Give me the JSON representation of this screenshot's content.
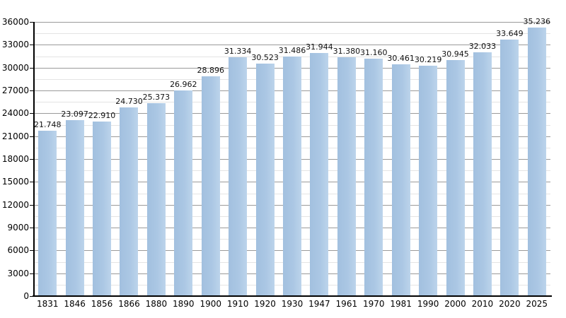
{
  "chart_data": {
    "type": "bar",
    "title": "",
    "xlabel": "",
    "ylabel": "",
    "categories": [
      "1831",
      "1846",
      "1856",
      "1866",
      "1880",
      "1890",
      "1900",
      "1910",
      "1920",
      "1930",
      "1947",
      "1961",
      "1970",
      "1981",
      "1990",
      "2000",
      "2010",
      "2020",
      "2025"
    ],
    "values": [
      21748,
      23097,
      22910,
      24730,
      25373,
      26962,
      28896,
      31334,
      30523,
      31486,
      31944,
      31380,
      31160,
      30461,
      30219,
      30945,
      32033,
      33649,
      35236
    ],
    "value_labels": [
      "21.748",
      "23.097",
      "22.910",
      "24.730",
      "25.373",
      "26.962",
      "28.896",
      "31.334",
      "30.523",
      "31.486",
      "31.944",
      "31.380",
      "31.160",
      "30.461",
      "30.219",
      "30.945",
      "32.033",
      "33.649",
      "35.236"
    ],
    "ylim": [
      0,
      36000
    ],
    "y_major_step": 3000,
    "y_minor_step": 1500,
    "y_tick_labels": [
      "0",
      "3000",
      "6000",
      "9000",
      "12000",
      "15000",
      "18000",
      "21000",
      "24000",
      "27000",
      "30000",
      "33000",
      "36000"
    ],
    "grid": "on",
    "legend": "none",
    "colors": {
      "bar_fill": "#abc7e4",
      "bar_fill_edge_light": "#bcd4eb",
      "bar_fill_edge_dark": "#a2c0df",
      "gridline_major": "#9a9a9a",
      "gridline_minor": "#e4e4e4",
      "axis": "#000000",
      "text": "#000000",
      "background": "#ffffff"
    }
  }
}
